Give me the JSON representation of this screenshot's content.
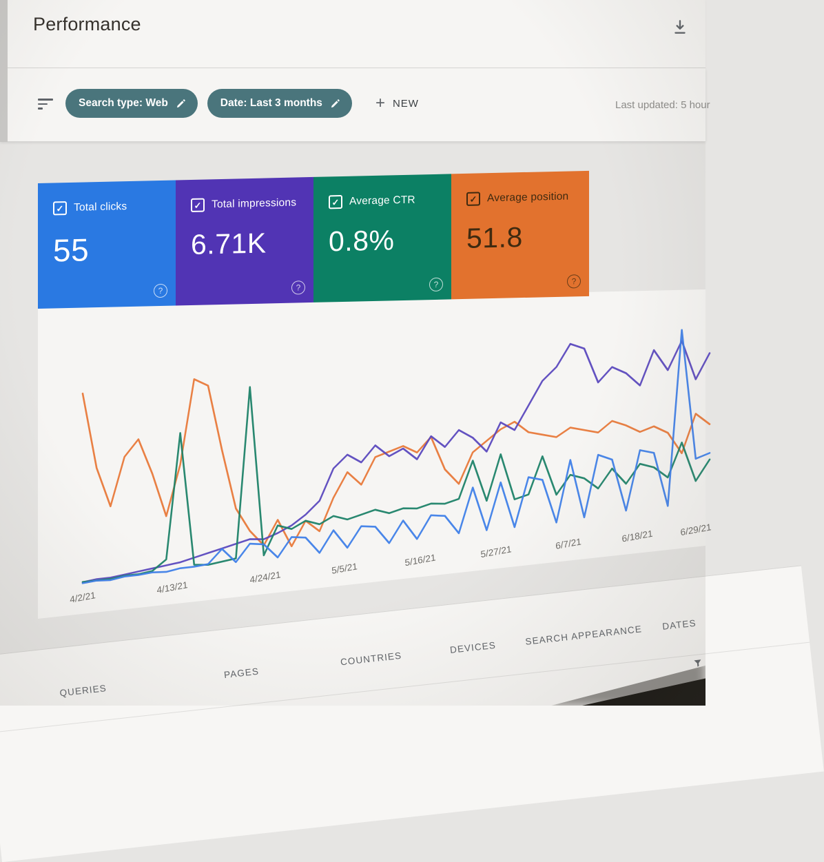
{
  "header": {
    "title": "Performance",
    "download_icon": "download-icon"
  },
  "filter_bar": {
    "filter_icon": "filter-list-icon",
    "chips": [
      {
        "label": "Search type: Web",
        "edit_icon": "pencil-icon"
      },
      {
        "label": "Date: Last 3 months",
        "edit_icon": "pencil-icon"
      }
    ],
    "new_button": {
      "plus": "+",
      "label": "NEW"
    },
    "last_updated": "Last updated: 5 hour"
  },
  "metric_cards": [
    {
      "label": "Total clicks",
      "value": "55",
      "checked": true,
      "check": "✓",
      "help": "?",
      "bg": "#2a79e2",
      "fg": "#ffffff"
    },
    {
      "label": "Total impressions",
      "value": "6.71K",
      "checked": true,
      "check": "✓",
      "help": "?",
      "bg": "#5134b4",
      "fg": "#ffffff"
    },
    {
      "label": "Average CTR",
      "value": "0.8%",
      "checked": true,
      "check": "✓",
      "help": "?",
      "bg": "#0c8064",
      "fg": "#ffffff"
    },
    {
      "label": "Average position",
      "value": "51.8",
      "checked": true,
      "check": "✓",
      "help": "?",
      "bg": "#e2722e",
      "fg": "#3f2a10"
    }
  ],
  "chart_data": {
    "type": "line",
    "x_tick_labels": [
      "4/2/21",
      "4/13/21",
      "4/24/21",
      "5/5/21",
      "5/16/21",
      "5/27/21",
      "6/7/21",
      "6/18/21",
      "6/29/21"
    ],
    "legend_position": "cards-above",
    "grid": false,
    "series": [
      {
        "name": "Average position",
        "color": "#e8793a",
        "plot_range": [
          0,
          100
        ],
        "unit": "position",
        "values": [
          96,
          58,
          38,
          62,
          70,
          52,
          30,
          55,
          97,
          93,
          60,
          30,
          18,
          10,
          22,
          8,
          20,
          14,
          30,
          42,
          35,
          48,
          50,
          52,
          48,
          55,
          38,
          30,
          45,
          50,
          55,
          58,
          52,
          50,
          48,
          52,
          50,
          48,
          53,
          50,
          46,
          48,
          44,
          33,
          52,
          46
        ]
      },
      {
        "name": "Total impressions",
        "color": "#5b49be",
        "plot_range": [
          0,
          130
        ],
        "unit": "impressions/day",
        "values": [
          2,
          3,
          3,
          4,
          5,
          6,
          7,
          8,
          10,
          12,
          14,
          16,
          18,
          17,
          20,
          24,
          30,
          38,
          58,
          66,
          60,
          70,
          62,
          66,
          58,
          72,
          64,
          74,
          68,
          58,
          76,
          70,
          85,
          100,
          108,
          122,
          118,
          95,
          104,
          99,
          90,
          112,
          98,
          116,
          90,
          106
        ]
      },
      {
        "name": "Average CTR",
        "color": "#1d8268",
        "plot_range": [
          0,
          12
        ],
        "unit": "%",
        "values": [
          0.2,
          0.2,
          0.2,
          0.3,
          0.3,
          0.4,
          1.0,
          8.5,
          0.5,
          0.4,
          0.5,
          0.6,
          10.8,
          0.6,
          2.3,
          2.0,
          2.4,
          2.1,
          2.5,
          2.2,
          2.4,
          2.6,
          2.3,
          2.5,
          2.4,
          2.6,
          2.5,
          2.7,
          4.9,
          2.4,
          5.1,
          2.3,
          2.5,
          4.7,
          2.3,
          3.4,
          3.1,
          2.4,
          3.5,
          2.5,
          3.6,
          3.3,
          2.6,
          4.6,
          2.2,
          3.4
        ]
      },
      {
        "name": "Total clicks",
        "color": "#3f7fe8",
        "plot_range": [
          0,
          9.5
        ],
        "unit": "clicks/day",
        "values": [
          0.1,
          0.15,
          0.1,
          0.2,
          0.2,
          0.25,
          0.2,
          0.3,
          0.3,
          0.35,
          1.0,
          0.3,
          1.1,
          1.0,
          0.3,
          1.2,
          1.1,
          0.3,
          1.3,
          0.4,
          1.35,
          1.25,
          0.4,
          1.4,
          0.45,
          1.5,
          1.4,
          0.5,
          2.6,
          0.5,
          2.7,
          0.5,
          2.8,
          2.6,
          0.5,
          3.4,
          0.6,
          3.5,
          3.2,
          0.7,
          3.5,
          3.3,
          0.7,
          9.0,
          2.8,
          3.0
        ]
      }
    ],
    "totals": {
      "clicks": "55",
      "impressions": "6.71K",
      "ctr": "0.8%",
      "position": "51.8"
    }
  },
  "tabs": {
    "items": [
      "QUERIES",
      "PAGES",
      "COUNTRIES",
      "DEVICES",
      "SEARCH APPEARANCE",
      "DATES"
    ],
    "table_filter_icon": "funnel-icon"
  }
}
